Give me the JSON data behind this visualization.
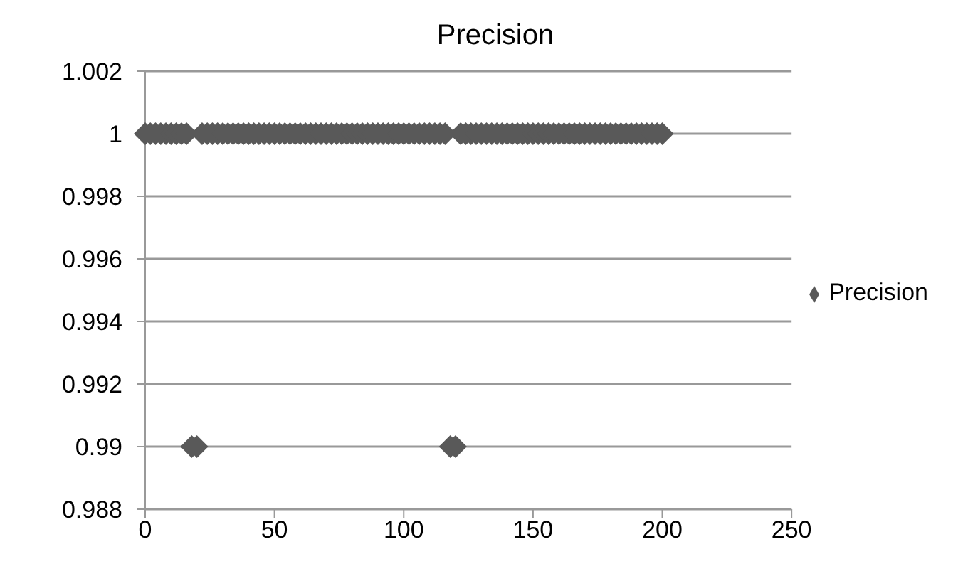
{
  "chart_data": {
    "type": "scatter",
    "title": "Precision",
    "x": [
      0,
      2,
      4,
      6,
      8,
      10,
      12,
      14,
      16,
      18,
      20,
      22,
      24,
      26,
      28,
      30,
      32,
      34,
      36,
      38,
      40,
      42,
      44,
      46,
      48,
      50,
      52,
      54,
      56,
      58,
      60,
      62,
      64,
      66,
      68,
      70,
      72,
      74,
      76,
      78,
      80,
      82,
      84,
      86,
      88,
      90,
      92,
      94,
      96,
      98,
      100,
      102,
      104,
      106,
      108,
      110,
      112,
      114,
      116,
      118,
      120,
      122,
      124,
      126,
      128,
      130,
      132,
      134,
      136,
      138,
      140,
      142,
      144,
      146,
      148,
      150,
      152,
      154,
      156,
      158,
      160,
      162,
      164,
      166,
      168,
      170,
      172,
      174,
      176,
      178,
      180,
      182,
      184,
      186,
      188,
      190,
      192,
      194,
      196,
      198,
      200
    ],
    "series": [
      {
        "name": "Precision",
        "color": "#595959",
        "values": [
          1,
          1,
          1,
          1,
          1,
          1,
          1,
          1,
          1,
          0.99,
          0.99,
          1,
          1,
          1,
          1,
          1,
          1,
          1,
          1,
          1,
          1,
          1,
          1,
          1,
          1,
          1,
          1,
          1,
          1,
          1,
          1,
          1,
          1,
          1,
          1,
          1,
          1,
          1,
          1,
          1,
          1,
          1,
          1,
          1,
          1,
          1,
          1,
          1,
          1,
          1,
          1,
          1,
          1,
          1,
          1,
          1,
          1,
          1,
          1,
          0.99,
          0.99,
          1,
          1,
          1,
          1,
          1,
          1,
          1,
          1,
          1,
          1,
          1,
          1,
          1,
          1,
          1,
          1,
          1,
          1,
          1,
          1,
          1,
          1,
          1,
          1,
          1,
          1,
          1,
          1,
          1,
          1,
          1,
          1,
          1,
          1,
          1,
          1,
          1,
          1,
          1,
          1
        ]
      }
    ],
    "xlim": [
      0,
      250
    ],
    "xticks": [
      0,
      50,
      100,
      150,
      200,
      250
    ],
    "ylim": [
      0.988,
      1.002
    ],
    "yticks": [
      0.988,
      0.99,
      0.992,
      0.994,
      0.996,
      0.998,
      1,
      1.002
    ],
    "grid": "y",
    "legend": "right",
    "marker": "diamond"
  }
}
